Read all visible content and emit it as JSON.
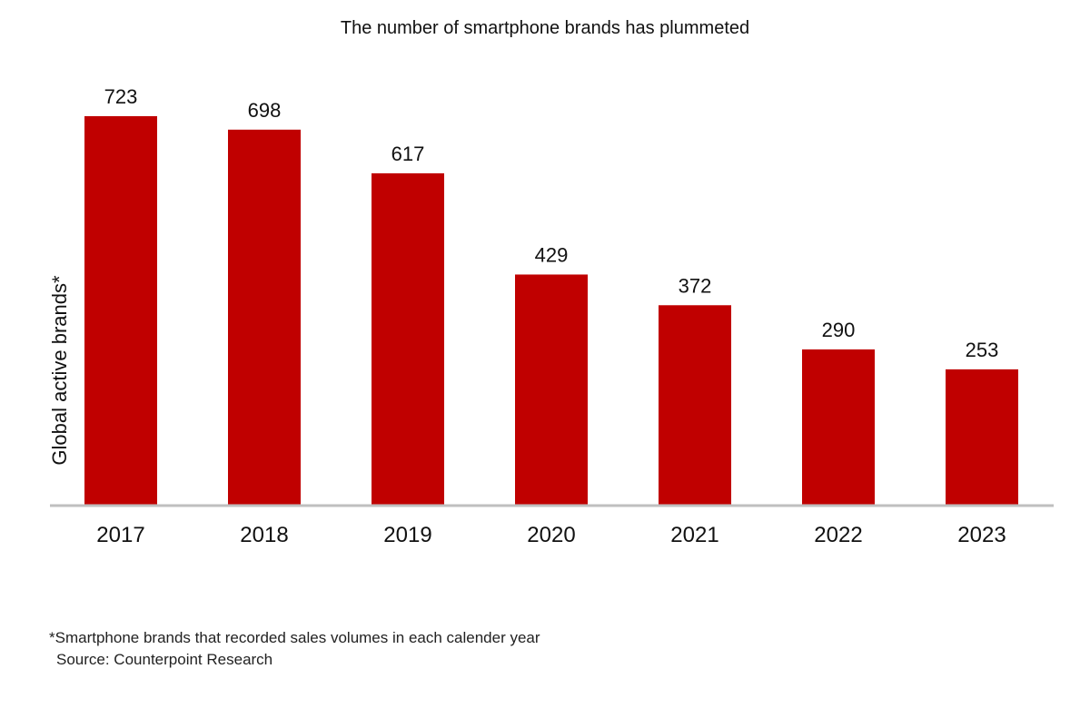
{
  "chart_data": {
    "type": "bar",
    "title": "The number of smartphone brands has plummeted",
    "xlabel": "",
    "ylabel": "Global active brands*",
    "categories": [
      "2017",
      "2018",
      "2019",
      "2020",
      "2021",
      "2022",
      "2023"
    ],
    "values": [
      723,
      698,
      617,
      429,
      372,
      290,
      253
    ],
    "ylim": [
      0,
      723
    ],
    "grid": false,
    "legend": "none",
    "bar_color": "#c00000",
    "axis_color": "#bfbfbf"
  },
  "footnote": "*Smartphone brands that recorded sales volumes in each calender year",
  "source": "Source: Counterpoint Research"
}
